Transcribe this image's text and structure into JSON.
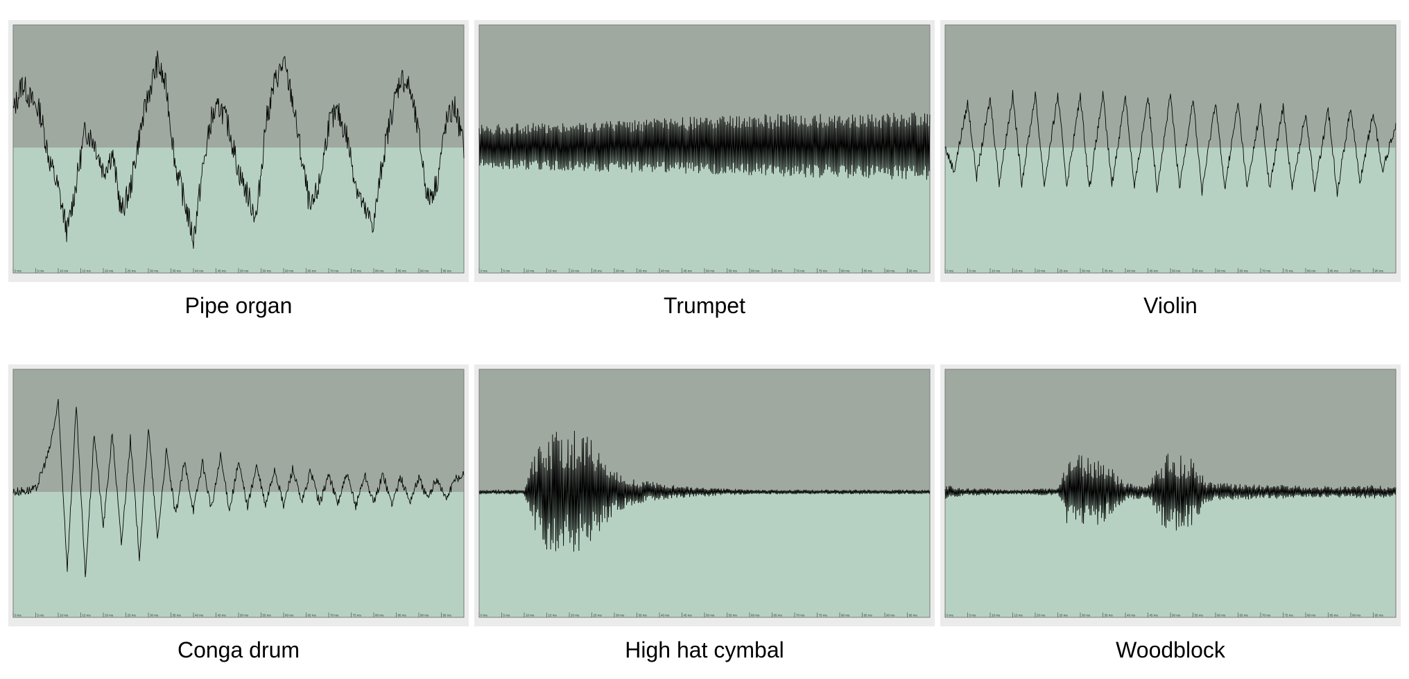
{
  "colors": {
    "frame": "#ebebeb",
    "upper_fill": "#9fa9a0",
    "lower_fill": "#b6d1c1",
    "waveform": "#000000"
  },
  "tick_labels": [
    "0 ms",
    "5 ms",
    "10 ms",
    "15 ms",
    "20 ms",
    "25 ms",
    "30 ms",
    "35 ms",
    "40 ms",
    "45 ms",
    "50 ms",
    "55 ms",
    "60 ms",
    "65 ms",
    "70 ms",
    "75 ms",
    "80 ms",
    "85 ms",
    "90 ms",
    "95 ms"
  ],
  "captions": [
    "Pipe organ",
    "Trumpet",
    "Violin",
    "Conga drum",
    "High hat cymbal",
    "Woodblock"
  ],
  "chart_data": [
    {
      "type": "line",
      "title": "Pipe organ",
      "x_unit": "ms",
      "xlim": [
        0,
        100
      ],
      "ylim": [
        -1,
        1
      ],
      "series": [
        {
          "x": [
            0,
            2,
            4,
            6,
            8,
            10,
            12,
            14,
            16,
            18,
            20,
            22,
            24,
            26,
            28,
            30,
            32,
            34,
            36,
            38,
            40,
            42,
            44,
            46,
            48,
            50,
            52,
            54,
            56,
            58,
            60,
            62,
            64,
            66,
            68,
            70,
            72,
            74,
            76,
            78,
            80,
            82,
            84,
            86,
            88,
            90,
            92,
            94,
            96,
            98,
            100
          ],
          "y": [
            0.3,
            0.55,
            0.4,
            0.3,
            -0.1,
            -0.35,
            -0.72,
            -0.3,
            0.15,
            0.05,
            -0.2,
            -0.05,
            -0.55,
            -0.35,
            0.1,
            0.45,
            0.72,
            0.5,
            -0.15,
            -0.45,
            -0.78,
            -0.2,
            0.25,
            0.35,
            0.15,
            -0.2,
            -0.4,
            -0.6,
            0.2,
            0.55,
            0.72,
            0.4,
            -0.1,
            -0.55,
            -0.3,
            0.2,
            0.3,
            0.1,
            -0.3,
            -0.55,
            -0.65,
            -0.1,
            0.3,
            0.6,
            0.5,
            0.1,
            -0.45,
            -0.3,
            0.2,
            0.35,
            0.0
          ]
        }
      ]
    },
    {
      "type": "line",
      "title": "Trumpet",
      "x_unit": "ms",
      "xlim": [
        0,
        100
      ],
      "ylim": [
        -1,
        1
      ],
      "series": [
        {
          "x": [
            0,
            20,
            40,
            60,
            80,
            100
          ],
          "y": [
            0.2,
            0.22,
            0.25,
            0.28,
            0.3,
            0.3
          ],
          "envelope_min": [
            -0.18,
            -0.2,
            -0.22,
            -0.24,
            -0.26,
            -0.28
          ]
        }
      ]
    },
    {
      "type": "line",
      "title": "Violin",
      "x_unit": "ms",
      "xlim": [
        0,
        100
      ],
      "ylim": [
        -1,
        1
      ],
      "series": [
        {
          "x": [
            0,
            2,
            5,
            7,
            10,
            12,
            15,
            17,
            20,
            22,
            25,
            27,
            30,
            32,
            35,
            37,
            40,
            42,
            45,
            47,
            50,
            52,
            55,
            57,
            60,
            62,
            65,
            67,
            70,
            72,
            75,
            77,
            80,
            82,
            85,
            87,
            90,
            92,
            95,
            97,
            100
          ],
          "y": [
            0.0,
            -0.2,
            0.38,
            -0.25,
            0.42,
            -0.3,
            0.45,
            -0.3,
            0.45,
            -0.32,
            0.45,
            -0.32,
            0.45,
            -0.35,
            0.45,
            -0.32,
            0.45,
            -0.35,
            0.45,
            -0.35,
            0.45,
            -0.35,
            0.42,
            -0.38,
            0.4,
            -0.35,
            0.38,
            -0.35,
            0.35,
            -0.35,
            0.35,
            -0.35,
            0.3,
            -0.35,
            0.32,
            -0.38,
            0.35,
            -0.3,
            0.3,
            -0.2,
            0.2
          ]
        }
      ]
    },
    {
      "type": "line",
      "title": "Conga drum",
      "x_unit": "ms",
      "xlim": [
        0,
        100
      ],
      "ylim": [
        -1,
        1
      ],
      "series": [
        {
          "x": [
            0,
            5,
            8,
            10,
            12,
            14,
            16,
            18,
            20,
            22,
            24,
            26,
            28,
            30,
            32,
            34,
            36,
            38,
            40,
            42,
            44,
            46,
            48,
            50,
            52,
            54,
            56,
            58,
            60,
            62,
            64,
            66,
            68,
            70,
            72,
            74,
            76,
            78,
            80,
            82,
            84,
            86,
            88,
            90,
            92,
            94,
            96,
            98,
            100
          ],
          "y": [
            0.0,
            0.02,
            0.35,
            0.75,
            -0.65,
            0.72,
            -0.72,
            0.5,
            -0.3,
            0.5,
            -0.45,
            0.45,
            -0.55,
            0.55,
            -0.4,
            0.35,
            -0.2,
            0.25,
            -0.15,
            0.25,
            -0.15,
            0.3,
            -0.15,
            0.25,
            -0.12,
            0.22,
            -0.12,
            0.2,
            -0.12,
            0.2,
            -0.1,
            0.18,
            -0.1,
            0.15,
            -0.1,
            0.15,
            -0.12,
            0.15,
            -0.1,
            0.15,
            -0.1,
            0.12,
            -0.08,
            0.12,
            -0.06,
            0.12,
            -0.06,
            0.1,
            0.15
          ]
        }
      ]
    },
    {
      "type": "line",
      "title": "High hat cymbal",
      "x_unit": "ms",
      "xlim": [
        0,
        100
      ],
      "ylim": [
        -1,
        1
      ],
      "series": [
        {
          "x": [
            0,
            10,
            12,
            15,
            20,
            25,
            30,
            35,
            40,
            45,
            50,
            55,
            60,
            65,
            70,
            75,
            80,
            85,
            90,
            95,
            100
          ],
          "y": [
            0.02,
            0.02,
            0.3,
            0.5,
            0.55,
            0.45,
            0.18,
            0.1,
            0.08,
            0.05,
            0.04,
            0.03,
            0.02,
            0.02,
            0.02,
            0.02,
            0.02,
            0.02,
            0.02,
            0.02,
            0.02
          ]
        }
      ]
    },
    {
      "type": "line",
      "title": "Woodblock",
      "x_unit": "ms",
      "xlim": [
        0,
        100
      ],
      "ylim": [
        -1,
        1
      ],
      "series": [
        {
          "x": [
            0,
            5,
            10,
            15,
            20,
            25,
            27,
            30,
            35,
            40,
            45,
            48,
            50,
            55,
            58,
            60,
            65,
            70,
            75,
            80,
            85,
            90,
            95,
            100
          ],
          "y": [
            0.06,
            0.03,
            0.03,
            0.02,
            0.03,
            0.03,
            0.3,
            0.32,
            0.28,
            0.08,
            0.05,
            0.3,
            0.35,
            0.28,
            0.1,
            0.08,
            0.07,
            0.06,
            0.06,
            0.05,
            0.05,
            0.05,
            0.06,
            0.04
          ]
        }
      ]
    }
  ]
}
